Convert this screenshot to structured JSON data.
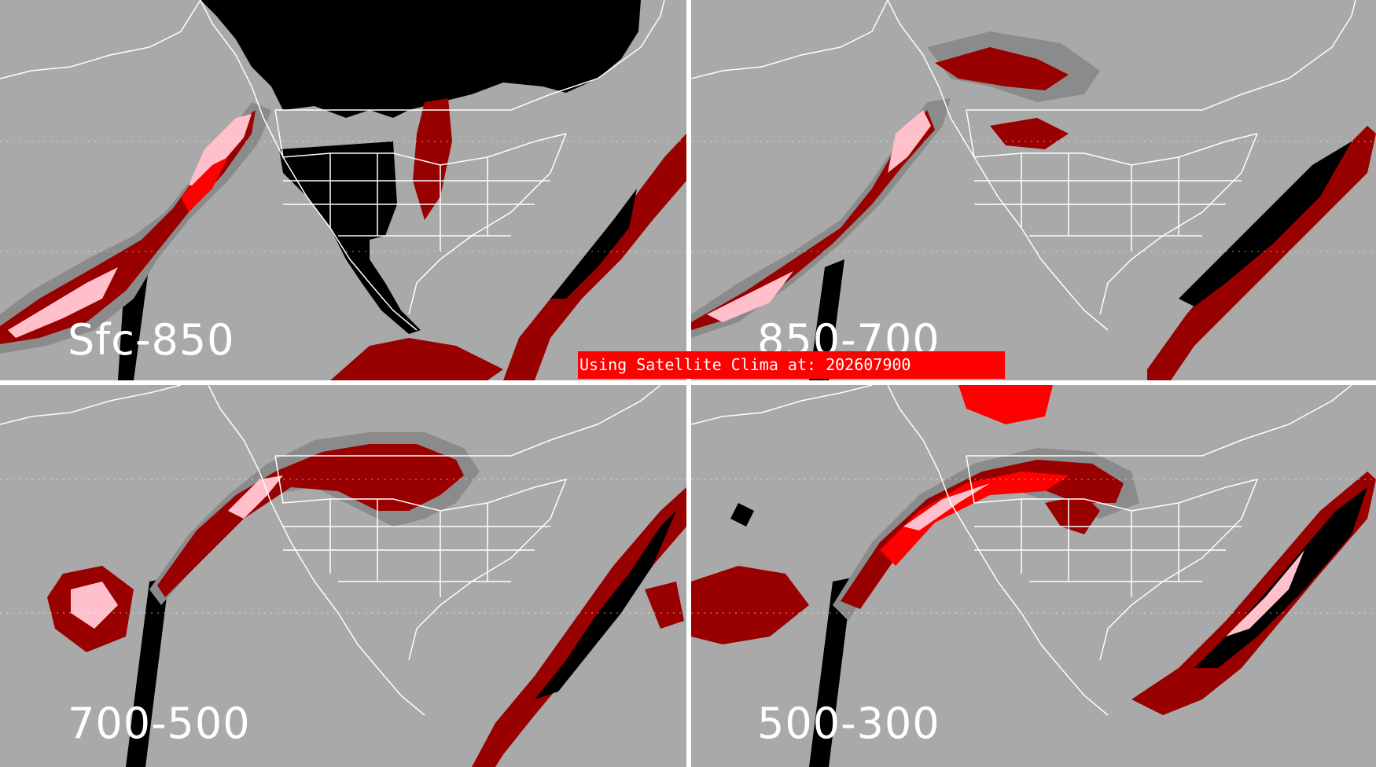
{
  "panels": [
    {
      "id": "tl",
      "label": "Sfc-850"
    },
    {
      "id": "tr",
      "label": "850-700"
    },
    {
      "id": "bl",
      "label": "700-500"
    },
    {
      "id": "br",
      "label": "500-300"
    }
  ],
  "banner": {
    "text": "Using Satellite Clima at: 202607900"
  },
  "colors": {
    "background": "#a9a9a9",
    "no_data": "#000000",
    "low": "#8b8b8b",
    "medium": "#990000",
    "high": "#ff0000",
    "highest": "#ffc0cb",
    "map_lines": "#ffffff"
  }
}
